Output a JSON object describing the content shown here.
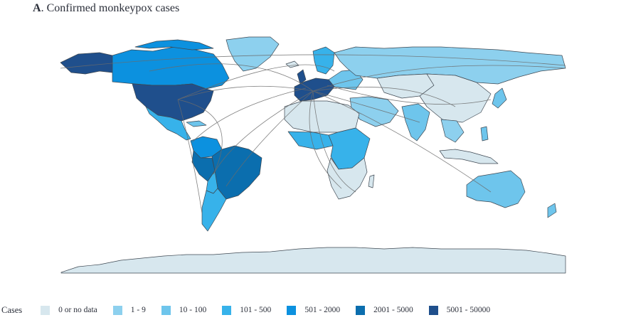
{
  "title": {
    "letter": "A",
    "text": ". Confirmed monkeypox cases"
  },
  "legend": {
    "title": "Cases",
    "items": [
      {
        "label": "0 or no data",
        "color": "#d7e7ee"
      },
      {
        "label": "1 - 9",
        "color": "#8dd0ee"
      },
      {
        "label": "10 - 100",
        "color": "#6ec5ec"
      },
      {
        "label": "101 - 500",
        "color": "#37b2ea"
      },
      {
        "label": "501 - 2000",
        "color": "#0c91df"
      },
      {
        "label": "2001 - 5000",
        "color": "#0b6eae"
      },
      {
        "label": "5001 - 50000",
        "color": "#1f4f8c"
      }
    ]
  },
  "colors": {
    "border": "#3e4852",
    "flow_line": "#6b6b6b"
  }
}
